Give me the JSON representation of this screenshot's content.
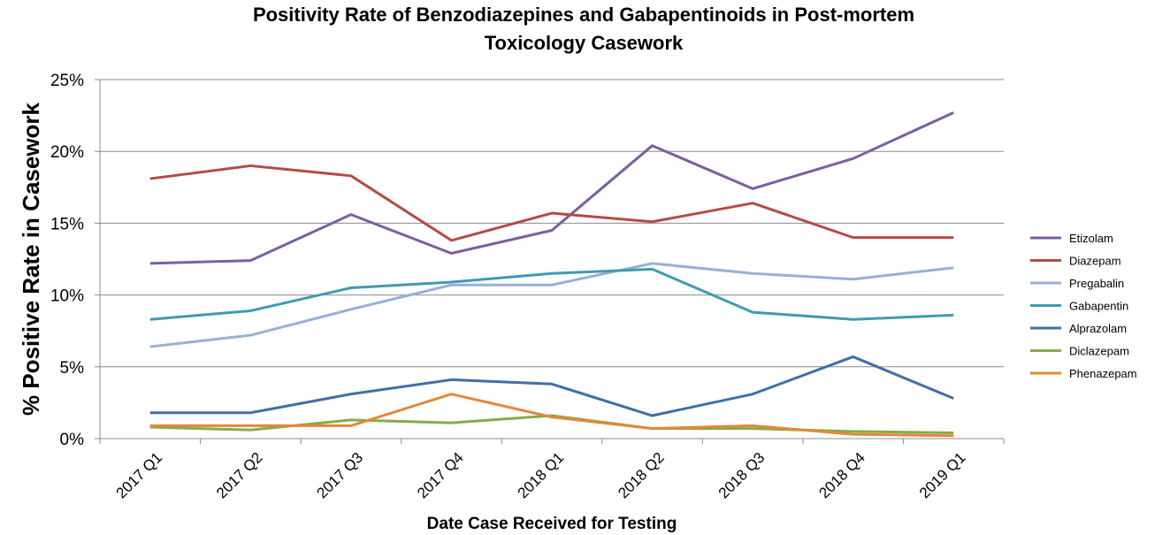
{
  "chart_data": {
    "type": "line",
    "title": [
      "Positivity Rate of Benzodiazepines and Gabapentinoids in Post-mortem",
      "Toxicology Casework"
    ],
    "x_label": "Date Case Received for Testing",
    "y_label": "% Positive Rate in Casework",
    "categories": [
      "2017 Q1",
      "2017 Q2",
      "2017 Q3",
      "2017 Q4",
      "2018 Q1",
      "2018 Q2",
      "2018 Q3",
      "2018 Q4",
      "2019 Q1"
    ],
    "ylim": [
      0,
      25
    ],
    "yticks": [
      {
        "value": 0,
        "label": "0%"
      },
      {
        "value": 5,
        "label": "5%"
      },
      {
        "value": 10,
        "label": "10%"
      },
      {
        "value": 15,
        "label": "15%"
      },
      {
        "value": 20,
        "label": "20%"
      },
      {
        "value": 25,
        "label": "25%"
      }
    ],
    "grid": true,
    "legend": "right",
    "series": [
      {
        "name": "Etizolam",
        "color": "#7b5fa0",
        "values": [
          12.2,
          12.4,
          15.6,
          12.9,
          14.5,
          20.4,
          17.4,
          19.5,
          22.7
        ]
      },
      {
        "name": "Diazepam",
        "color": "#b44b46",
        "values": [
          18.1,
          19.0,
          18.3,
          13.8,
          15.7,
          15.1,
          16.4,
          14.0,
          14.0
        ]
      },
      {
        "name": "Pregabalin",
        "color": "#97b0d6",
        "values": [
          6.4,
          7.2,
          9.0,
          10.7,
          10.7,
          12.2,
          11.5,
          11.1,
          11.9
        ]
      },
      {
        "name": "Gabapentin",
        "color": "#3f9bb0",
        "values": [
          8.3,
          8.9,
          10.5,
          10.9,
          11.5,
          11.8,
          8.8,
          8.3,
          8.6
        ]
      },
      {
        "name": "Alprazolam",
        "color": "#3f6fa6",
        "values": [
          1.8,
          1.8,
          3.1,
          4.1,
          3.8,
          1.6,
          3.1,
          5.7,
          2.8
        ]
      },
      {
        "name": "Diclazepam",
        "color": "#86ab4c",
        "values": [
          0.8,
          0.6,
          1.3,
          1.1,
          1.6,
          0.7,
          0.7,
          0.5,
          0.4
        ]
      },
      {
        "name": "Phenazepam",
        "color": "#e3883b",
        "values": [
          0.9,
          0.9,
          0.9,
          3.1,
          1.5,
          0.7,
          0.9,
          0.3,
          0.2
        ]
      }
    ]
  }
}
